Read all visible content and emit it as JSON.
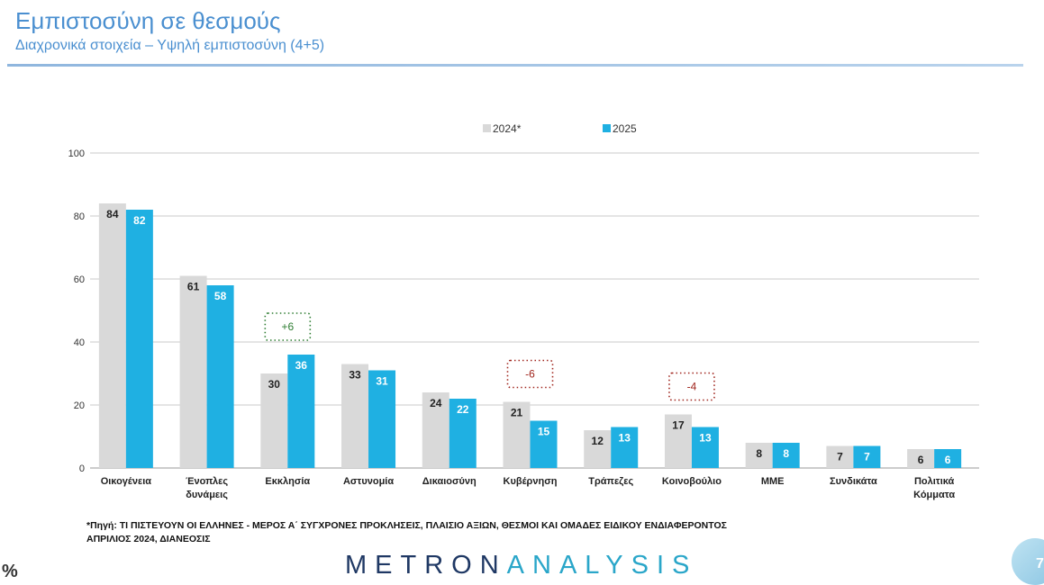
{
  "header": {
    "title": "Εμπιστοσύνη σε θεσμούς",
    "subtitle": "Διαχρονικά στοιχεία – Υψηλή εμπιστοσύνη (4+5)"
  },
  "chart_data": {
    "type": "bar",
    "categories": [
      "Οικογένεια",
      "Ένοπλες δυνάμεις",
      "Εκκλησία",
      "Αστυνομία",
      "Δικαιοσύνη",
      "Κυβέρνηση",
      "Τράπεζες",
      "Κοινοβούλιο",
      "ΜΜΕ",
      "Συνδικάτα",
      "Πολιτικά Κόμματα"
    ],
    "category_lines": [
      [
        "Οικογένεια"
      ],
      [
        "Ένοπλες",
        "δυνάμεις"
      ],
      [
        "Εκκλησία"
      ],
      [
        "Αστυνομία"
      ],
      [
        "Δικαιοσύνη"
      ],
      [
        "Κυβέρνηση"
      ],
      [
        "Τράπεζες"
      ],
      [
        "Κοινοβούλιο"
      ],
      [
        "ΜΜΕ"
      ],
      [
        "Συνδικάτα"
      ],
      [
        "Πολιτικά",
        "Κόμματα"
      ]
    ],
    "series": [
      {
        "name": "2024*",
        "color": "#d9d9d9",
        "values": [
          84,
          61,
          30,
          33,
          24,
          21,
          12,
          17,
          8,
          7,
          6
        ]
      },
      {
        "name": "2025",
        "color": "#1fb0e2",
        "values": [
          82,
          58,
          36,
          31,
          22,
          15,
          13,
          13,
          8,
          7,
          6
        ]
      }
    ],
    "ylim": [
      0,
      100
    ],
    "yticks": [
      0,
      20,
      40,
      60,
      80,
      100
    ],
    "grid": true,
    "legend_position": "top",
    "annotations": [
      {
        "category_index": 2,
        "text": "+6",
        "color": "#2e7d32"
      },
      {
        "category_index": 5,
        "text": "-6",
        "color": "#a0251d"
      },
      {
        "category_index": 7,
        "text": "-4",
        "color": "#a0251d"
      }
    ]
  },
  "footnote": {
    "line1": "*Πηγή: ΤΙ ΠΙΣΤΕΥΟΥΝ ΟΙ ΕΛΛΗΝΕΣ - ΜΕΡΟΣ Α΄ ΣΥΓΧΡΟΝΕΣ ΠΡΟΚΛΗΣΕΙΣ, ΠΛΑΙΣΙΟ ΑΞΙΩΝ, ΘΕΣΜΟΙ ΚΑΙ ΟΜΑΔΕΣ ΕΙΔΙΚΟΥ ΕΝΔΙΑΦΕΡΟΝΤΟΣ",
    "line2": "ΑΠΡΙΛΙΟΣ 2024, ΔΙΑΝΕΟΣΙΣ"
  },
  "unit_label": "%",
  "logo": {
    "part1": "METRON",
    "part2": "ANALYSIS"
  },
  "page_number": "7"
}
